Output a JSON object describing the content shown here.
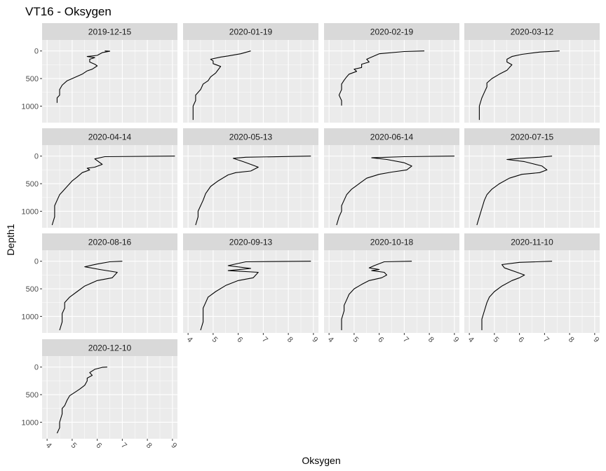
{
  "chart_data": {
    "type": "line",
    "title": "VT16  -  Oksygen",
    "xlabel": "Oksygen",
    "ylabel": "Depth1",
    "xlim": [
      3.8,
      9.2
    ],
    "ylim": [
      1300,
      -200
    ],
    "y_reversed": true,
    "x_ticks": [
      "4",
      "5",
      "6",
      "7",
      "8",
      "9"
    ],
    "y_ticks": [
      "0",
      "500",
      "1000"
    ],
    "grid": true,
    "panels": [
      {
        "name": "2019-12-15",
        "points": [
          [
            6.3,
            0
          ],
          [
            6.5,
            5
          ],
          [
            6.2,
            30
          ],
          [
            6.0,
            80
          ],
          [
            5.6,
            100
          ],
          [
            5.9,
            120
          ],
          [
            5.7,
            150
          ],
          [
            5.7,
            200
          ],
          [
            5.9,
            240
          ],
          [
            6.0,
            270
          ],
          [
            5.8,
            330
          ],
          [
            5.6,
            360
          ],
          [
            5.4,
            420
          ],
          [
            5.0,
            500
          ],
          [
            4.8,
            540
          ],
          [
            4.6,
            620
          ],
          [
            4.5,
            700
          ],
          [
            4.5,
            800
          ],
          [
            4.4,
            850
          ],
          [
            4.4,
            940
          ]
        ]
      },
      {
        "name": "2020-01-19",
        "points": [
          [
            6.5,
            0
          ],
          [
            6.1,
            50
          ],
          [
            5.6,
            90
          ],
          [
            5.3,
            110
          ],
          [
            4.9,
            150
          ],
          [
            5.0,
            180
          ],
          [
            5.0,
            230
          ],
          [
            5.3,
            280
          ],
          [
            5.2,
            340
          ],
          [
            5.1,
            400
          ],
          [
            4.9,
            470
          ],
          [
            4.8,
            540
          ],
          [
            4.6,
            600
          ],
          [
            4.5,
            700
          ],
          [
            4.3,
            800
          ],
          [
            4.3,
            900
          ],
          [
            4.2,
            1000
          ],
          [
            4.2,
            1100
          ],
          [
            4.2,
            1250
          ]
        ]
      },
      {
        "name": "2020-02-19",
        "points": [
          [
            7.8,
            0
          ],
          [
            7.0,
            10
          ],
          [
            6.0,
            50
          ],
          [
            5.7,
            110
          ],
          [
            5.5,
            150
          ],
          [
            5.6,
            200
          ],
          [
            5.3,
            240
          ],
          [
            5.3,
            300
          ],
          [
            5.0,
            330
          ],
          [
            5.1,
            370
          ],
          [
            4.8,
            420
          ],
          [
            4.7,
            470
          ],
          [
            4.6,
            530
          ],
          [
            4.5,
            600
          ],
          [
            4.5,
            700
          ],
          [
            4.4,
            800
          ],
          [
            4.5,
            900
          ],
          [
            4.5,
            990
          ]
        ]
      },
      {
        "name": "2020-03-12",
        "points": [
          [
            7.6,
            0
          ],
          [
            6.8,
            20
          ],
          [
            6.1,
            60
          ],
          [
            5.7,
            100
          ],
          [
            5.5,
            150
          ],
          [
            5.5,
            200
          ],
          [
            5.7,
            250
          ],
          [
            5.6,
            300
          ],
          [
            5.5,
            350
          ],
          [
            5.2,
            420
          ],
          [
            4.9,
            500
          ],
          [
            4.7,
            580
          ],
          [
            4.7,
            650
          ],
          [
            4.6,
            750
          ],
          [
            4.5,
            850
          ],
          [
            4.4,
            1000
          ],
          [
            4.4,
            1150
          ],
          [
            4.4,
            1250
          ]
        ]
      },
      {
        "name": "2020-04-14",
        "points": [
          [
            9.1,
            0
          ],
          [
            6.3,
            10
          ],
          [
            5.9,
            50
          ],
          [
            6.2,
            150
          ],
          [
            5.9,
            200
          ],
          [
            5.6,
            220
          ],
          [
            5.7,
            250
          ],
          [
            5.4,
            300
          ],
          [
            5.2,
            380
          ],
          [
            5.0,
            450
          ],
          [
            4.8,
            550
          ],
          [
            4.6,
            650
          ],
          [
            4.5,
            700
          ],
          [
            4.4,
            800
          ],
          [
            4.3,
            900
          ],
          [
            4.3,
            1000
          ],
          [
            4.3,
            1100
          ],
          [
            4.2,
            1250
          ]
        ]
      },
      {
        "name": "2020-05-13",
        "points": [
          [
            8.9,
            0
          ],
          [
            6.3,
            20
          ],
          [
            5.8,
            40
          ],
          [
            6.2,
            100
          ],
          [
            6.5,
            150
          ],
          [
            6.8,
            200
          ],
          [
            6.5,
            270
          ],
          [
            5.9,
            300
          ],
          [
            5.6,
            340
          ],
          [
            5.2,
            450
          ],
          [
            4.9,
            550
          ],
          [
            4.7,
            680
          ],
          [
            4.6,
            800
          ],
          [
            4.5,
            900
          ],
          [
            4.4,
            1000
          ],
          [
            4.4,
            1100
          ],
          [
            4.3,
            1250
          ]
        ]
      },
      {
        "name": "2020-06-14",
        "points": [
          [
            9.0,
            0
          ],
          [
            7.0,
            10
          ],
          [
            5.7,
            30
          ],
          [
            6.3,
            60
          ],
          [
            7.0,
            120
          ],
          [
            7.3,
            180
          ],
          [
            7.1,
            250
          ],
          [
            6.5,
            290
          ],
          [
            6.0,
            330
          ],
          [
            5.5,
            400
          ],
          [
            5.2,
            500
          ],
          [
            4.9,
            600
          ],
          [
            4.7,
            700
          ],
          [
            4.6,
            800
          ],
          [
            4.5,
            900
          ],
          [
            4.5,
            1000
          ],
          [
            4.4,
            1100
          ],
          [
            4.3,
            1250
          ]
        ]
      },
      {
        "name": "2020-07-15",
        "points": [
          [
            7.3,
            0
          ],
          [
            6.8,
            20
          ],
          [
            6.0,
            40
          ],
          [
            5.5,
            60
          ],
          [
            6.2,
            100
          ],
          [
            6.9,
            180
          ],
          [
            7.1,
            250
          ],
          [
            6.8,
            300
          ],
          [
            6.1,
            330
          ],
          [
            5.6,
            400
          ],
          [
            5.2,
            500
          ],
          [
            4.9,
            600
          ],
          [
            4.7,
            700
          ],
          [
            4.6,
            800
          ],
          [
            4.5,
            950
          ],
          [
            4.4,
            1100
          ],
          [
            4.3,
            1250
          ]
        ]
      },
      {
        "name": "2020-08-16",
        "points": [
          [
            7.0,
            0
          ],
          [
            6.5,
            10
          ],
          [
            6.0,
            50
          ],
          [
            5.5,
            100
          ],
          [
            6.1,
            150
          ],
          [
            6.8,
            200
          ],
          [
            6.6,
            300
          ],
          [
            6.0,
            350
          ],
          [
            5.5,
            450
          ],
          [
            5.2,
            550
          ],
          [
            4.9,
            650
          ],
          [
            4.7,
            750
          ],
          [
            4.7,
            850
          ],
          [
            4.6,
            950
          ],
          [
            4.6,
            1100
          ],
          [
            4.5,
            1250
          ]
        ]
      },
      {
        "name": "2020-09-13",
        "points": [
          [
            8.9,
            0
          ],
          [
            6.3,
            10
          ],
          [
            5.6,
            80
          ],
          [
            6.5,
            130
          ],
          [
            5.6,
            170
          ],
          [
            6.8,
            200
          ],
          [
            6.6,
            300
          ],
          [
            6.0,
            350
          ],
          [
            5.5,
            440
          ],
          [
            5.1,
            550
          ],
          [
            4.8,
            650
          ],
          [
            4.7,
            750
          ],
          [
            4.6,
            850
          ],
          [
            4.6,
            950
          ],
          [
            4.6,
            1100
          ],
          [
            4.5,
            1250
          ]
        ]
      },
      {
        "name": "2020-10-18",
        "points": [
          [
            7.3,
            0
          ],
          [
            6.2,
            10
          ],
          [
            5.8,
            80
          ],
          [
            5.6,
            120
          ],
          [
            6.0,
            150
          ],
          [
            5.7,
            170
          ],
          [
            6.2,
            200
          ],
          [
            6.3,
            250
          ],
          [
            6.1,
            300
          ],
          [
            5.6,
            350
          ],
          [
            5.3,
            420
          ],
          [
            5.0,
            500
          ],
          [
            4.8,
            600
          ],
          [
            4.7,
            700
          ],
          [
            4.6,
            800
          ],
          [
            4.6,
            900
          ],
          [
            4.5,
            1050
          ],
          [
            4.5,
            1250
          ]
        ]
      },
      {
        "name": "2020-11-10",
        "points": [
          [
            7.3,
            0
          ],
          [
            6.7,
            10
          ],
          [
            6.0,
            20
          ],
          [
            5.3,
            60
          ],
          [
            5.4,
            120
          ],
          [
            5.9,
            200
          ],
          [
            6.2,
            250
          ],
          [
            6.0,
            300
          ],
          [
            5.7,
            350
          ],
          [
            5.3,
            450
          ],
          [
            5.0,
            550
          ],
          [
            4.8,
            650
          ],
          [
            4.7,
            750
          ],
          [
            4.6,
            900
          ],
          [
            4.5,
            1050
          ],
          [
            4.5,
            1250
          ]
        ]
      },
      {
        "name": "2020-12-10",
        "points": [
          [
            6.4,
            0
          ],
          [
            6.2,
            5
          ],
          [
            5.9,
            40
          ],
          [
            5.7,
            100
          ],
          [
            5.8,
            150
          ],
          [
            5.6,
            200
          ],
          [
            5.6,
            250
          ],
          [
            5.5,
            330
          ],
          [
            5.3,
            400
          ],
          [
            5.1,
            460
          ],
          [
            4.9,
            520
          ],
          [
            4.8,
            600
          ],
          [
            4.7,
            700
          ],
          [
            4.6,
            750
          ],
          [
            4.6,
            850
          ],
          [
            4.5,
            1000
          ],
          [
            4.5,
            1100
          ],
          [
            4.4,
            1200
          ]
        ]
      }
    ]
  },
  "colors": {
    "panel_bg": "#EBEBEB",
    "strip_bg": "#D9D9D9",
    "grid_major": "#FFFFFF",
    "line": "#000000"
  }
}
